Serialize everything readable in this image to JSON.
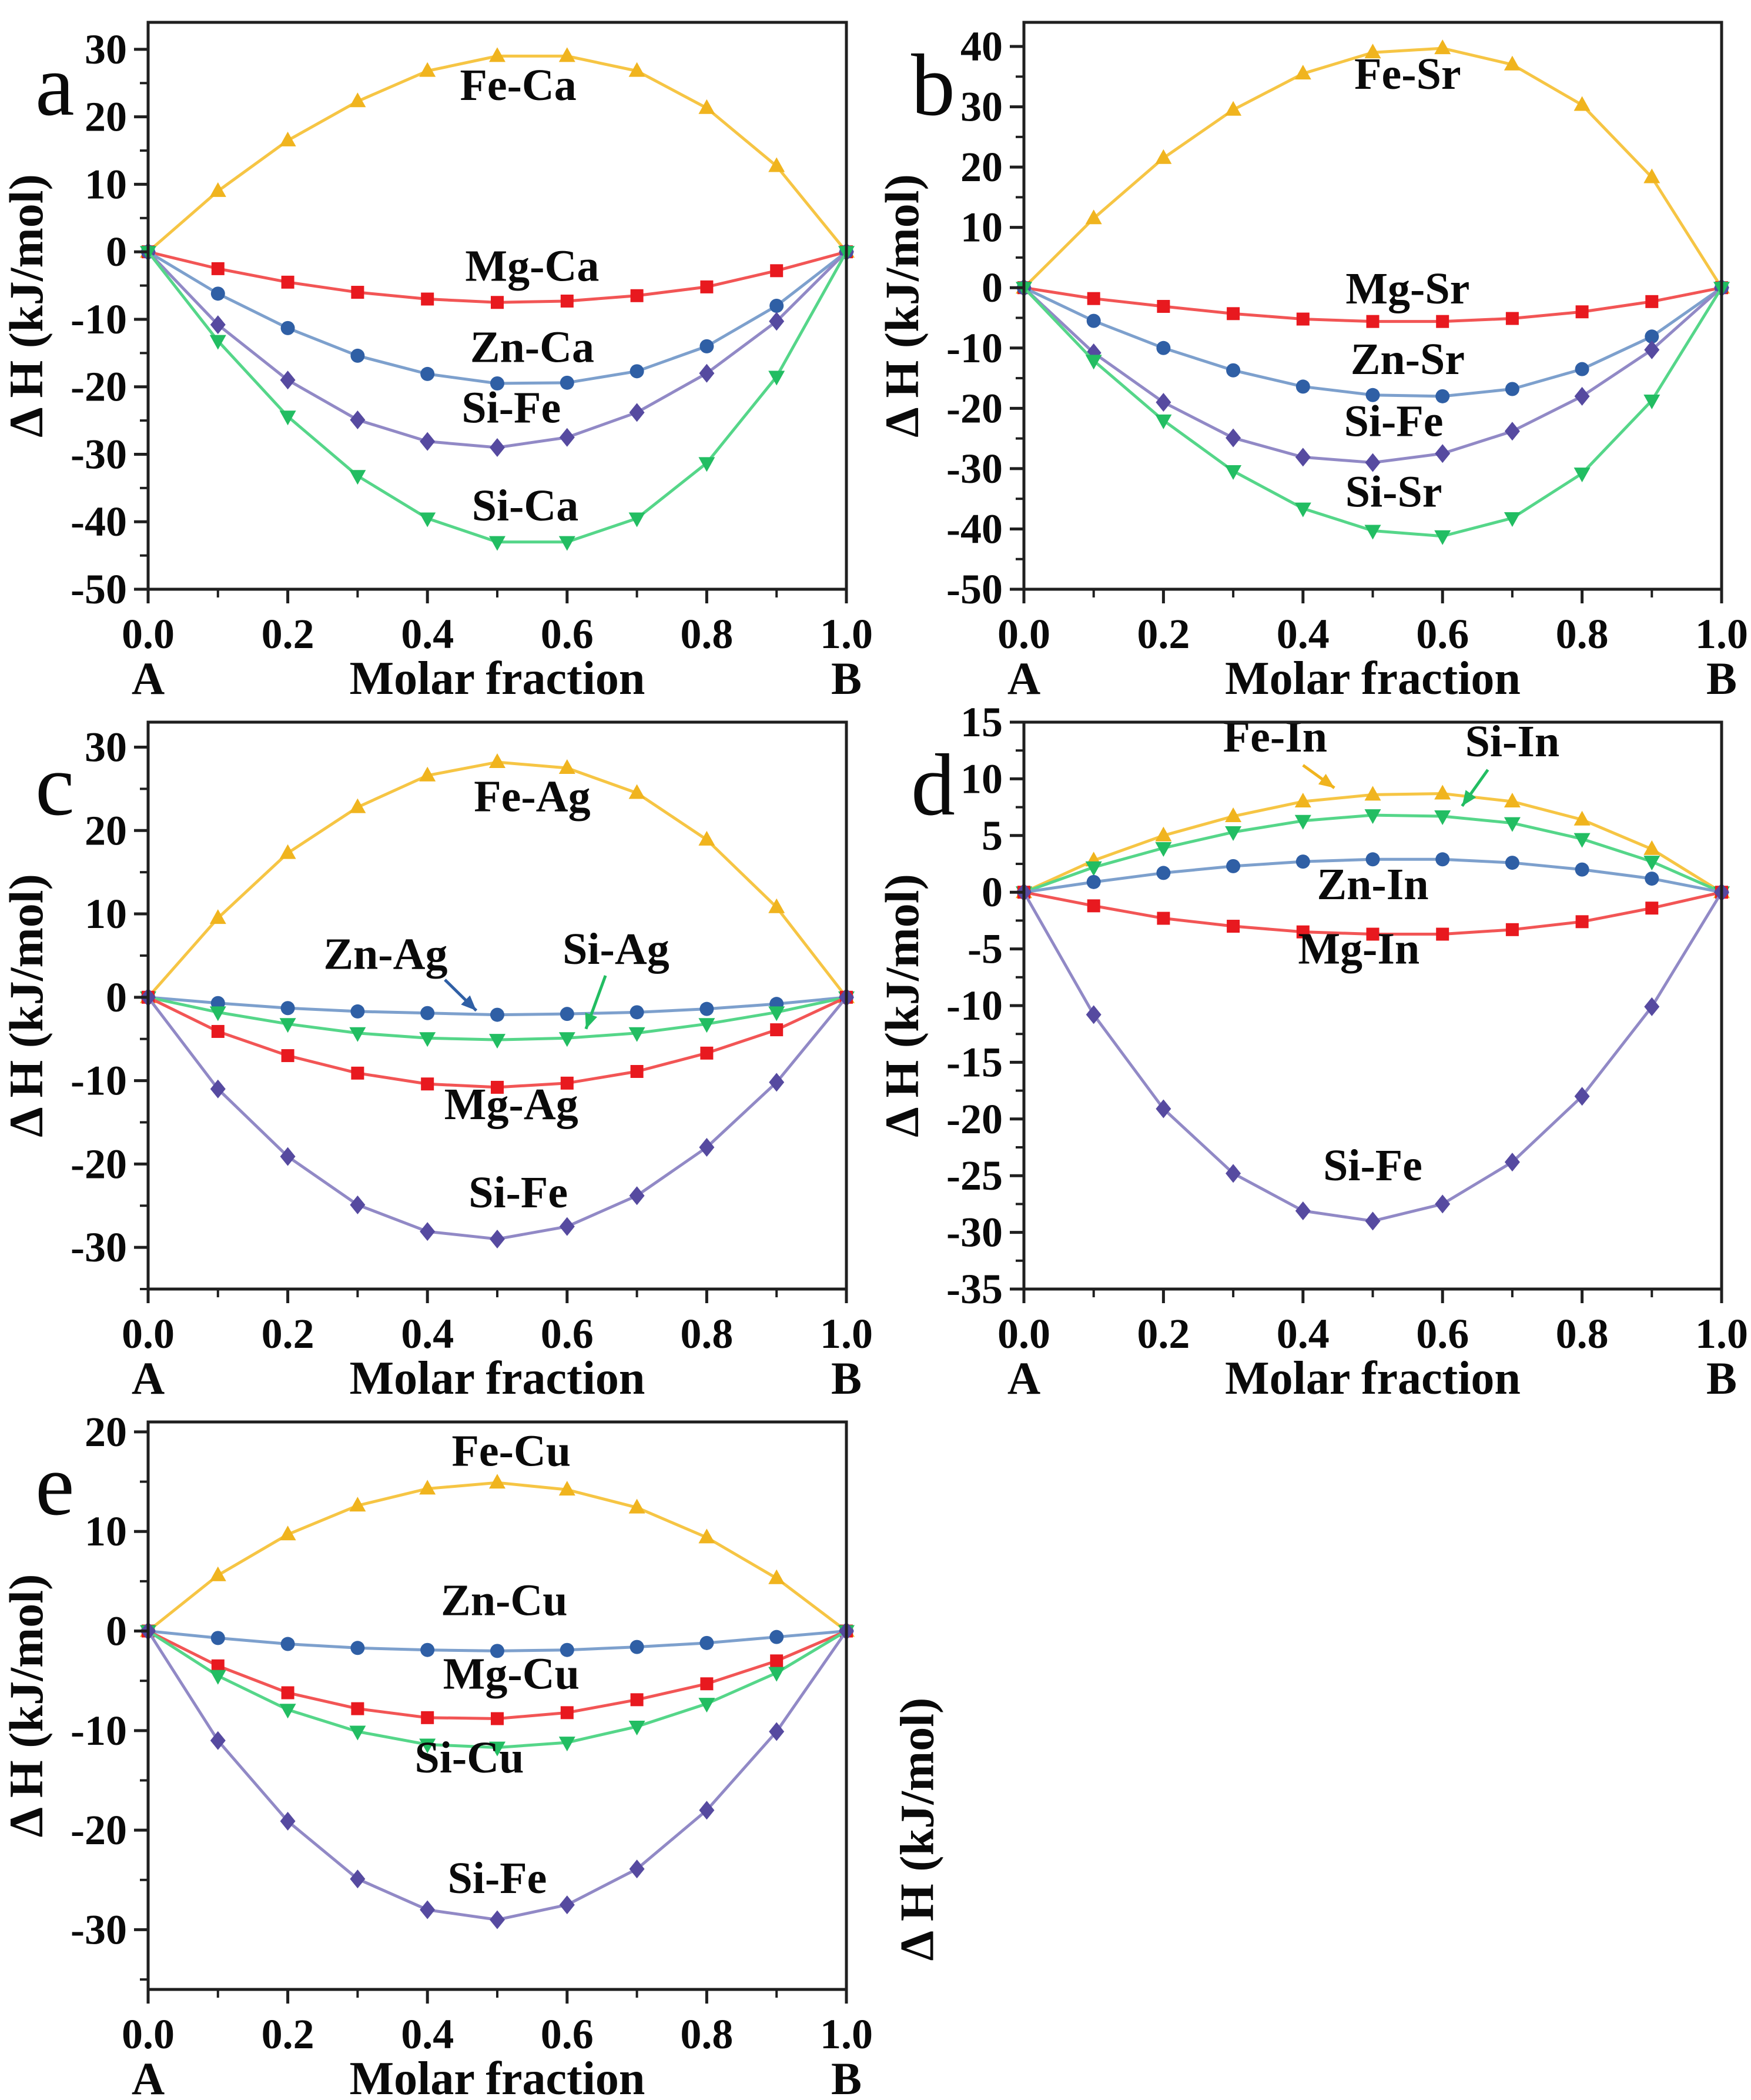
{
  "figure": {
    "right_axis_label": "Δ H (kJ/mol)"
  },
  "chart_data": [
    {
      "id": "a",
      "panel_label": "a",
      "type": "line",
      "xlabel": "Molar fraction",
      "ylabel": "Δ H (kJ/mol)",
      "x_left_end": "A",
      "x_right_end": "B",
      "x": [
        0,
        0.1,
        0.2,
        0.3,
        0.4,
        0.5,
        0.6,
        0.7,
        0.8,
        0.9,
        1.0
      ],
      "xlim": [
        0,
        1
      ],
      "ylim": [
        -50,
        34
      ],
      "xticks": [
        0,
        0.2,
        0.4,
        0.6,
        0.8,
        1.0
      ],
      "xtick_labels": [
        "0.0",
        "0.2",
        "0.4",
        "0.6",
        "0.8",
        "1.0"
      ],
      "yticks": [
        30,
        20,
        10,
        0,
        -10,
        -20,
        -30,
        -40,
        -50
      ],
      "x_minor_step": 0.1,
      "y_minor_step": 5,
      "legend_position": "in-plot-labels",
      "grid": false,
      "series": [
        {
          "name": "Fe-Ca",
          "marker": "triangle-up",
          "marker_color": "#F0B41E",
          "line_color": "#F6C544",
          "values": [
            0,
            9.0,
            16.5,
            22.3,
            26.8,
            29.0,
            29.0,
            26.8,
            21.3,
            12.7,
            0
          ],
          "label": {
            "x": 0.53,
            "y": 22.5
          }
        },
        {
          "name": "Mg-Ca",
          "marker": "square",
          "marker_color": "#E8191F",
          "line_color": "#F25555",
          "values": [
            0,
            -2.5,
            -4.5,
            -6.0,
            -7.0,
            -7.5,
            -7.3,
            -6.5,
            -5.2,
            -2.8,
            0
          ],
          "label": {
            "x": 0.55,
            "y": -4.3
          }
        },
        {
          "name": "Zn-Ca",
          "marker": "circle",
          "marker_color": "#2F5FA5",
          "line_color": "#7DA0CD",
          "values": [
            0,
            -6.2,
            -11.3,
            -15.4,
            -18.1,
            -19.5,
            -19.4,
            -17.7,
            -14.0,
            -8.0,
            0
          ],
          "label": {
            "x": 0.55,
            "y": -16.3
          }
        },
        {
          "name": "Si-Fe",
          "marker": "diamond",
          "marker_color": "#564AA0",
          "line_color": "#9189C6",
          "values": [
            0,
            -10.8,
            -19.0,
            -24.9,
            -28.1,
            -29.0,
            -27.5,
            -23.8,
            -18.0,
            -10.3,
            0
          ],
          "label": {
            "x": 0.52,
            "y": -25.3
          }
        },
        {
          "name": "Si-Ca",
          "marker": "triangle-down",
          "marker_color": "#22BD62",
          "line_color": "#55D689",
          "values": [
            0,
            -13.2,
            -24.4,
            -33.2,
            -39.5,
            -43.0,
            -43.0,
            -39.5,
            -31.3,
            -18.5,
            0
          ],
          "label": {
            "x": 0.54,
            "y": -39.8
          }
        }
      ]
    },
    {
      "id": "b",
      "panel_label": "b",
      "type": "line",
      "xlabel": "Molar fraction",
      "ylabel": "Δ H (kJ/mol)",
      "x_left_end": "A",
      "x_right_end": "B",
      "x": [
        0,
        0.1,
        0.2,
        0.3,
        0.4,
        0.5,
        0.6,
        0.7,
        0.8,
        0.9,
        1.0
      ],
      "xlim": [
        0,
        1
      ],
      "ylim": [
        -50,
        44
      ],
      "xticks": [
        0,
        0.2,
        0.4,
        0.6,
        0.8,
        1.0
      ],
      "xtick_labels": [
        "0.0",
        "0.2",
        "0.4",
        "0.6",
        "0.8",
        "1.0"
      ],
      "yticks": [
        40,
        30,
        20,
        10,
        0,
        -10,
        -20,
        -30,
        -40,
        -50
      ],
      "x_minor_step": 0.1,
      "y_minor_step": 5,
      "legend_position": "in-plot-labels",
      "grid": false,
      "series": [
        {
          "name": "Fe-Sr",
          "marker": "triangle-up",
          "marker_color": "#F0B41E",
          "line_color": "#F6C544",
          "values": [
            0,
            11.5,
            21.5,
            29.5,
            35.5,
            39.0,
            39.7,
            37.0,
            30.3,
            18.3,
            0
          ],
          "label": {
            "x": 0.55,
            "y": 33.0
          }
        },
        {
          "name": "Mg-Sr",
          "marker": "square",
          "marker_color": "#E8191F",
          "line_color": "#F25555",
          "values": [
            0,
            -1.8,
            -3.1,
            -4.3,
            -5.2,
            -5.6,
            -5.6,
            -5.1,
            -4.0,
            -2.3,
            0
          ],
          "label": {
            "x": 0.55,
            "y": -2.6
          }
        },
        {
          "name": "Zn-Sr",
          "marker": "circle",
          "marker_color": "#2F5FA5",
          "line_color": "#7DA0CD",
          "values": [
            0,
            -5.5,
            -10.0,
            -13.7,
            -16.4,
            -17.8,
            -18.0,
            -16.8,
            -13.5,
            -8.1,
            0
          ],
          "label": {
            "x": 0.55,
            "y": -14.3
          }
        },
        {
          "name": "Si-Fe",
          "marker": "diamond",
          "marker_color": "#564AA0",
          "line_color": "#9189C6",
          "values": [
            0,
            -10.8,
            -19.0,
            -24.9,
            -28.1,
            -29.0,
            -27.5,
            -23.8,
            -18.0,
            -10.3,
            0
          ],
          "label": {
            "x": 0.53,
            "y": -24.6
          }
        },
        {
          "name": "Si-Sr",
          "marker": "triangle-down",
          "marker_color": "#22BD62",
          "line_color": "#55D689",
          "values": [
            0,
            -12.1,
            -22.0,
            -30.4,
            -36.6,
            -40.3,
            -41.2,
            -38.2,
            -30.8,
            -18.7,
            0
          ],
          "label": {
            "x": 0.53,
            "y": -36.3
          }
        }
      ]
    },
    {
      "id": "c",
      "panel_label": "c",
      "type": "line",
      "xlabel": "Molar fraction",
      "ylabel": "Δ H (kJ/mol)",
      "x_left_end": "A",
      "x_right_end": "B",
      "x": [
        0,
        0.1,
        0.2,
        0.3,
        0.4,
        0.5,
        0.6,
        0.7,
        0.8,
        0.9,
        1.0
      ],
      "xlim": [
        0,
        1
      ],
      "ylim": [
        -35,
        33
      ],
      "xticks": [
        0,
        0.2,
        0.4,
        0.6,
        0.8,
        1.0
      ],
      "xtick_labels": [
        "0.0",
        "0.2",
        "0.4",
        "0.6",
        "0.8",
        "1.0"
      ],
      "yticks": [
        30,
        20,
        10,
        0,
        -10,
        -20,
        -30
      ],
      "x_minor_step": 0.1,
      "y_minor_step": 5,
      "legend_position": "in-plot-labels",
      "grid": false,
      "series": [
        {
          "name": "Fe-Ag",
          "marker": "triangle-up",
          "marker_color": "#F0B41E",
          "line_color": "#F6C544",
          "values": [
            0,
            9.5,
            17.3,
            22.8,
            26.6,
            28.2,
            27.5,
            24.5,
            18.9,
            10.8,
            0
          ],
          "label": {
            "x": 0.55,
            "y": 22.3
          }
        },
        {
          "name": "Zn-Ag",
          "marker": "circle",
          "marker_color": "#2F5FA5",
          "line_color": "#7DA0CD",
          "values": [
            0,
            -0.7,
            -1.3,
            -1.7,
            -1.9,
            -2.1,
            -2.0,
            -1.8,
            -1.4,
            -0.8,
            0
          ],
          "label": {
            "x": 0.34,
            "y": 3.4
          },
          "label_arrow": {
            "x1": 0.425,
            "y1": 2.1,
            "x2": 0.47,
            "y2": -1.6,
            "color": "#2F5FA5"
          }
        },
        {
          "name": "Si-Ag",
          "marker": "triangle-down",
          "marker_color": "#22BD62",
          "line_color": "#55D689",
          "values": [
            0,
            -1.8,
            -3.2,
            -4.3,
            -4.9,
            -5.1,
            -4.9,
            -4.3,
            -3.2,
            -1.8,
            0
          ],
          "label": {
            "x": 0.67,
            "y": 4.0
          },
          "label_arrow": {
            "x1": 0.655,
            "y1": 2.6,
            "x2": 0.627,
            "y2": -3.8,
            "color": "#22BD62"
          }
        },
        {
          "name": "Mg-Ag",
          "marker": "square",
          "marker_color": "#E8191F",
          "line_color": "#F25555",
          "values": [
            0,
            -4.1,
            -7.0,
            -9.1,
            -10.4,
            -10.8,
            -10.3,
            -8.9,
            -6.7,
            -3.9,
            0
          ],
          "label": {
            "x": 0.52,
            "y": -14.6
          }
        },
        {
          "name": "Si-Fe",
          "marker": "diamond",
          "marker_color": "#564AA0",
          "line_color": "#9189C6",
          "values": [
            0,
            -11.0,
            -19.1,
            -24.9,
            -28.1,
            -29.0,
            -27.5,
            -23.8,
            -18.0,
            -10.2,
            0
          ],
          "label": {
            "x": 0.53,
            "y": -25.2
          }
        }
      ]
    },
    {
      "id": "d",
      "panel_label": "d",
      "type": "line",
      "xlabel": "Molar fraction",
      "ylabel": "Δ H (kJ/mol)",
      "x_left_end": "A",
      "x_right_end": "B",
      "x": [
        0,
        0.1,
        0.2,
        0.3,
        0.4,
        0.5,
        0.6,
        0.7,
        0.8,
        0.9,
        1.0
      ],
      "xlim": [
        0,
        1
      ],
      "ylim": [
        -35,
        15
      ],
      "xticks": [
        0,
        0.2,
        0.4,
        0.6,
        0.8,
        1.0
      ],
      "xtick_labels": [
        "0.0",
        "0.2",
        "0.4",
        "0.6",
        "0.8",
        "1.0"
      ],
      "yticks": [
        15,
        10,
        5,
        0,
        -5,
        -10,
        -15,
        -20,
        -25,
        -30,
        -35
      ],
      "x_minor_step": 0.1,
      "y_minor_step": 2.5,
      "legend_position": "in-plot-labels",
      "grid": false,
      "series": [
        {
          "name": "Fe-In",
          "marker": "triangle-up",
          "marker_color": "#F0B41E",
          "line_color": "#F6C544",
          "values": [
            0,
            2.8,
            5.0,
            6.7,
            8.0,
            8.6,
            8.7,
            8.0,
            6.4,
            3.8,
            0
          ],
          "label": {
            "x": 0.36,
            "y": 12.4
          },
          "label_arrow": {
            "x1": 0.4,
            "y1": 11.2,
            "x2": 0.445,
            "y2": 9.2,
            "color": "#F0B41E"
          }
        },
        {
          "name": "Si-In",
          "marker": "triangle-down",
          "marker_color": "#22BD62",
          "line_color": "#55D689",
          "values": [
            0,
            2.2,
            3.9,
            5.3,
            6.3,
            6.8,
            6.7,
            6.1,
            4.7,
            2.7,
            0
          ],
          "label": {
            "x": 0.7,
            "y": 12.0
          },
          "label_arrow": {
            "x1": 0.665,
            "y1": 10.8,
            "x2": 0.628,
            "y2": 7.6,
            "color": "#22BD62"
          }
        },
        {
          "name": "Zn-In",
          "marker": "circle",
          "marker_color": "#2F5FA5",
          "line_color": "#7DA0CD",
          "values": [
            0,
            0.9,
            1.7,
            2.3,
            2.7,
            2.9,
            2.9,
            2.6,
            2.0,
            1.2,
            0
          ],
          "label": {
            "x": 0.5,
            "y": -0.6
          }
        },
        {
          "name": "Mg-In",
          "marker": "square",
          "marker_color": "#E8191F",
          "line_color": "#F25555",
          "values": [
            0,
            -1.2,
            -2.3,
            -3.0,
            -3.5,
            -3.7,
            -3.7,
            -3.3,
            -2.6,
            -1.4,
            0
          ],
          "label": {
            "x": 0.48,
            "y": -6.3
          }
        },
        {
          "name": "Si-Fe",
          "marker": "diamond",
          "marker_color": "#564AA0",
          "line_color": "#9189C6",
          "values": [
            0,
            -10.8,
            -19.1,
            -24.8,
            -28.1,
            -29.0,
            -27.5,
            -23.8,
            -18.0,
            -10.1,
            0
          ],
          "label": {
            "x": 0.5,
            "y": -25.4
          }
        }
      ]
    },
    {
      "id": "e",
      "panel_label": "e",
      "type": "line",
      "xlabel": "Molar fraction",
      "ylabel": "Δ H (kJ/mol)",
      "x_left_end": "A",
      "x_right_end": "B",
      "x": [
        0,
        0.1,
        0.2,
        0.3,
        0.4,
        0.5,
        0.6,
        0.7,
        0.8,
        0.9,
        1.0
      ],
      "xlim": [
        0,
        1
      ],
      "ylim": [
        -36,
        21
      ],
      "xticks": [
        0,
        0.2,
        0.4,
        0.6,
        0.8,
        1.0
      ],
      "xtick_labels": [
        "0.0",
        "0.2",
        "0.4",
        "0.6",
        "0.8",
        "1.0"
      ],
      "yticks": [
        20,
        10,
        0,
        -10,
        -20,
        -30
      ],
      "x_minor_step": 0.1,
      "y_minor_step": 5,
      "legend_position": "in-plot-labels",
      "grid": false,
      "series": [
        {
          "name": "Fe-Cu",
          "marker": "triangle-up",
          "marker_color": "#F0B41E",
          "line_color": "#F6C544",
          "values": [
            0,
            5.6,
            9.7,
            12.6,
            14.3,
            14.9,
            14.2,
            12.4,
            9.4,
            5.3,
            0
          ],
          "label": {
            "x": 0.52,
            "y": 16.6
          }
        },
        {
          "name": "Zn-Cu",
          "marker": "circle",
          "marker_color": "#2F5FA5",
          "line_color": "#7DA0CD",
          "values": [
            0,
            -0.7,
            -1.3,
            -1.7,
            -1.9,
            -2.0,
            -1.9,
            -1.6,
            -1.2,
            -0.6,
            0
          ],
          "label": {
            "x": 0.51,
            "y": 1.6
          }
        },
        {
          "name": "Mg-Cu",
          "marker": "square",
          "marker_color": "#E8191F",
          "line_color": "#F25555",
          "values": [
            0,
            -3.5,
            -6.2,
            -7.8,
            -8.7,
            -8.8,
            -8.2,
            -6.9,
            -5.3,
            -3.0,
            0
          ],
          "label": {
            "x": 0.52,
            "y": -5.8
          }
        },
        {
          "name": "Si-Cu",
          "marker": "triangle-down",
          "marker_color": "#22BD62",
          "line_color": "#55D689",
          "values": [
            0,
            -4.5,
            -7.9,
            -10.1,
            -11.4,
            -11.7,
            -11.2,
            -9.6,
            -7.3,
            -4.2,
            0
          ],
          "label": {
            "x": 0.46,
            "y": -14.2
          }
        },
        {
          "name": "Si-Fe",
          "marker": "diamond",
          "marker_color": "#564AA0",
          "line_color": "#9189C6",
          "values": [
            0,
            -11.0,
            -19.1,
            -24.9,
            -28.0,
            -29.0,
            -27.5,
            -23.9,
            -18.0,
            -10.1,
            0
          ],
          "label": {
            "x": 0.5,
            "y": -26.3
          }
        }
      ]
    }
  ]
}
